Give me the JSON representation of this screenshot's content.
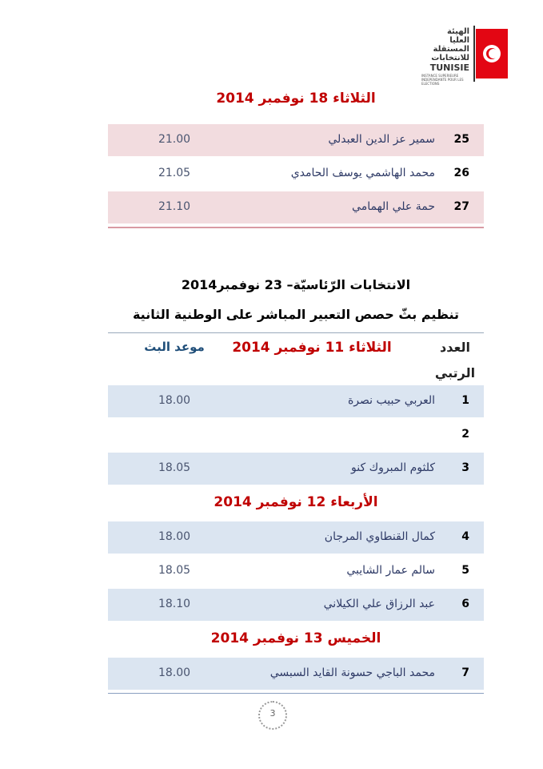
{
  "logo": {
    "arabic": [
      "الهيئة",
      "العليا",
      "المستقلة",
      "للانتخابات"
    ],
    "latin": "TUNISIE",
    "sub": "INSTANCE SUPERIEURE INDEPENDANTE POUR LES ELECTIONS"
  },
  "section1": {
    "day": "الثلاثاء 18 نوفمبر 2014",
    "rows": [
      {
        "num": "25",
        "name": "سمير عز الدين العبدلي",
        "time": "21.00"
      },
      {
        "num": "26",
        "name": "محمد الهاشمي يوسف الحامدي",
        "time": "21.05"
      },
      {
        "num": "27",
        "name": "حمة علي الهمامي",
        "time": "21.10"
      }
    ]
  },
  "heading": {
    "title": "الانتخابات الرّئاسيّة– 23 نوفمبر2014",
    "subtitle": "تنظيم بثّ حصص التعبير المباشر على الوطنية الثانية"
  },
  "table": {
    "header": {
      "number": [
        "العدد",
        "الرتبي"
      ],
      "time": "موعد البث"
    },
    "groups": [
      {
        "day": "الثلاثاء 11 نوفمبر 2014",
        "rows": [
          {
            "num": "1",
            "name": "العربي حبيب نصرة",
            "time": "18.00"
          },
          {
            "num": "2"
          },
          {
            "num": "3",
            "name": "كلثوم المبروك كنو",
            "time": "18.05"
          }
        ]
      },
      {
        "day": "الأربعاء 12 نوفمبر 2014",
        "rows": [
          {
            "num": "4",
            "name": "كمال القنطاوي المرجان",
            "time": "18.00"
          },
          {
            "num": "5",
            "name": "سالم عمار الشايبي",
            "time": "18.05"
          },
          {
            "num": "6",
            "name": "عبد الرزاق علي الكيلاني",
            "time": "18.10"
          }
        ]
      },
      {
        "day": "الخميس 13 نوفمبر 2014",
        "rows": [
          {
            "num": "7",
            "name": "محمد الباجي حسونة القايد السبسي",
            "time": "18.00"
          }
        ]
      }
    ]
  },
  "page_number": "3"
}
